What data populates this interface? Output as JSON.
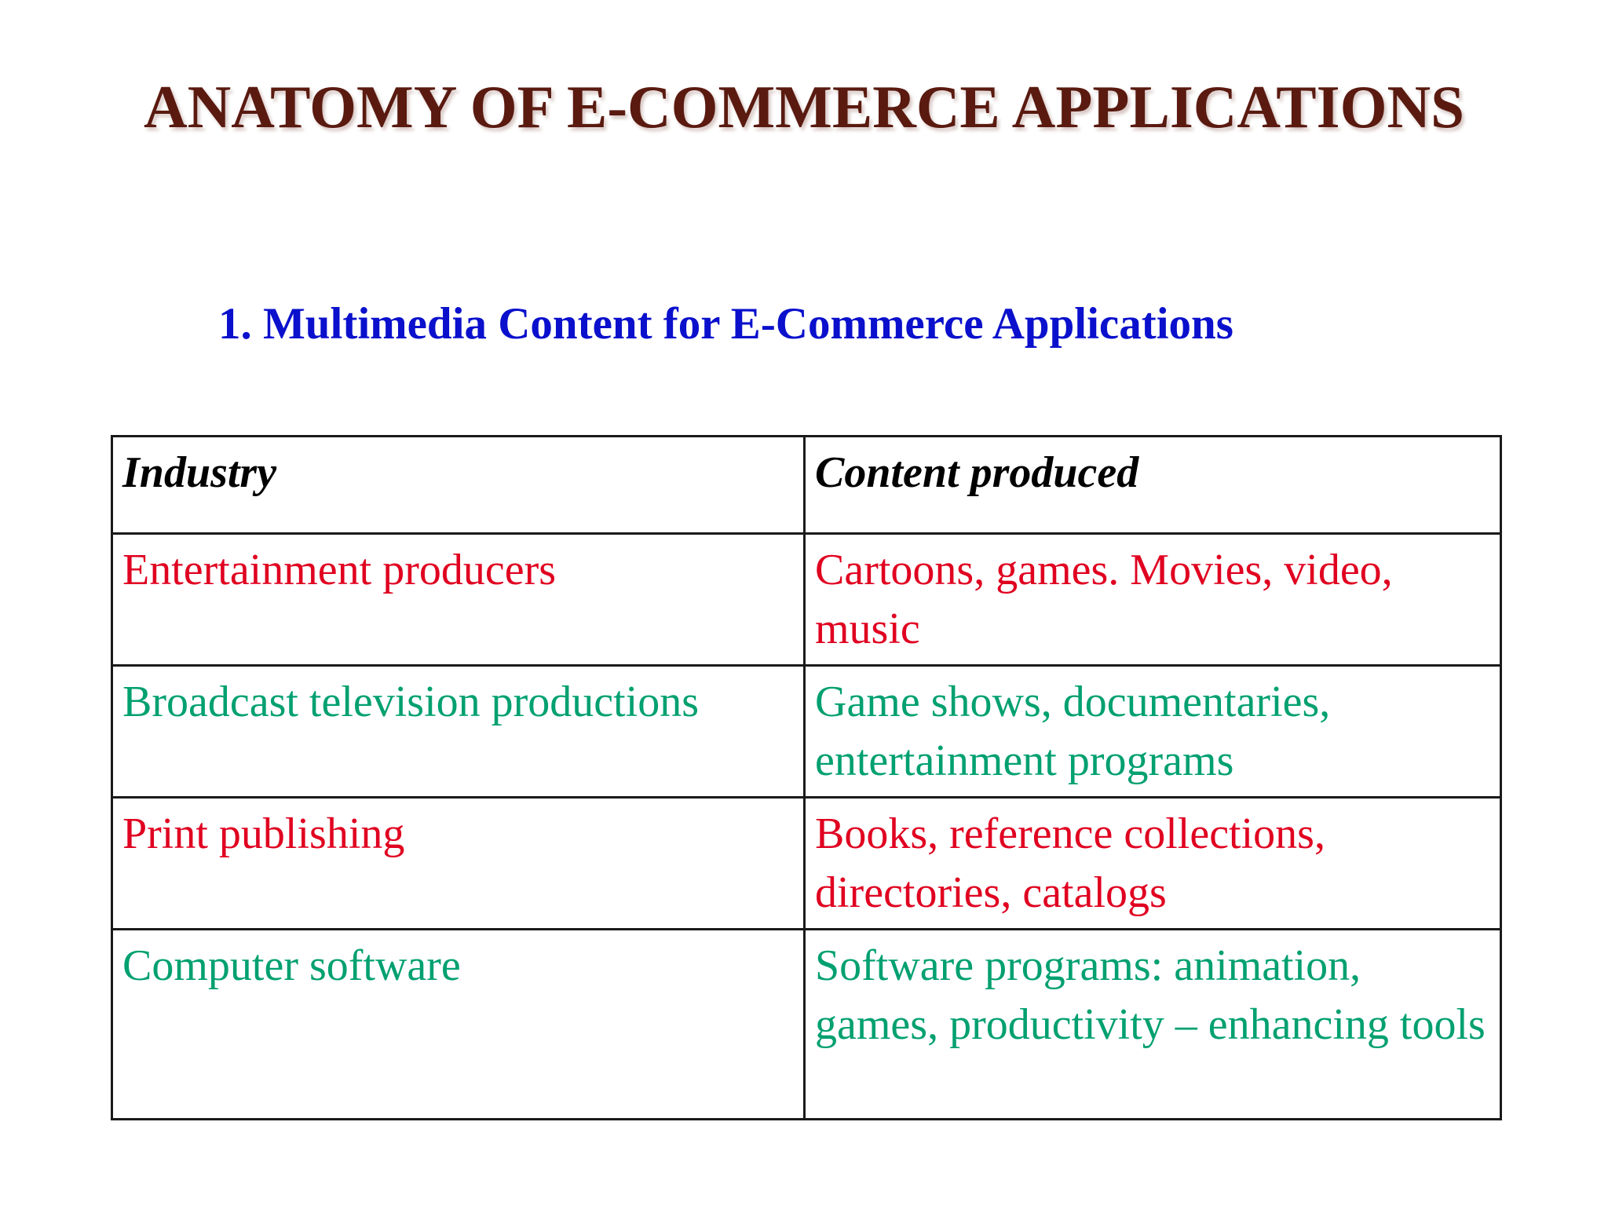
{
  "title": "ANATOMY OF E-COMMERCE APPLICATIONS",
  "subtitle": "1. Multimedia Content for E-Commerce Applications",
  "colors": {
    "title": "#5a1a10",
    "subtitle": "#0a10cc",
    "red": "#e00020",
    "green": "#00a070"
  },
  "table": {
    "headers": [
      "Industry",
      "Content produced"
    ],
    "rows": [
      {
        "industry": "Entertainment producers",
        "content": "Cartoons, games. Movies, video, music",
        "color": "red"
      },
      {
        "industry": "Broadcast television productions",
        "content": "Game shows, documentaries, entertainment programs",
        "color": "green"
      },
      {
        "industry": "Print publishing",
        "content": "Books, reference collections, directories, catalogs",
        "color": "red"
      },
      {
        "industry": "Computer software",
        "content": "Software programs: animation, games, productivity – enhancing tools",
        "color": "green"
      }
    ]
  }
}
